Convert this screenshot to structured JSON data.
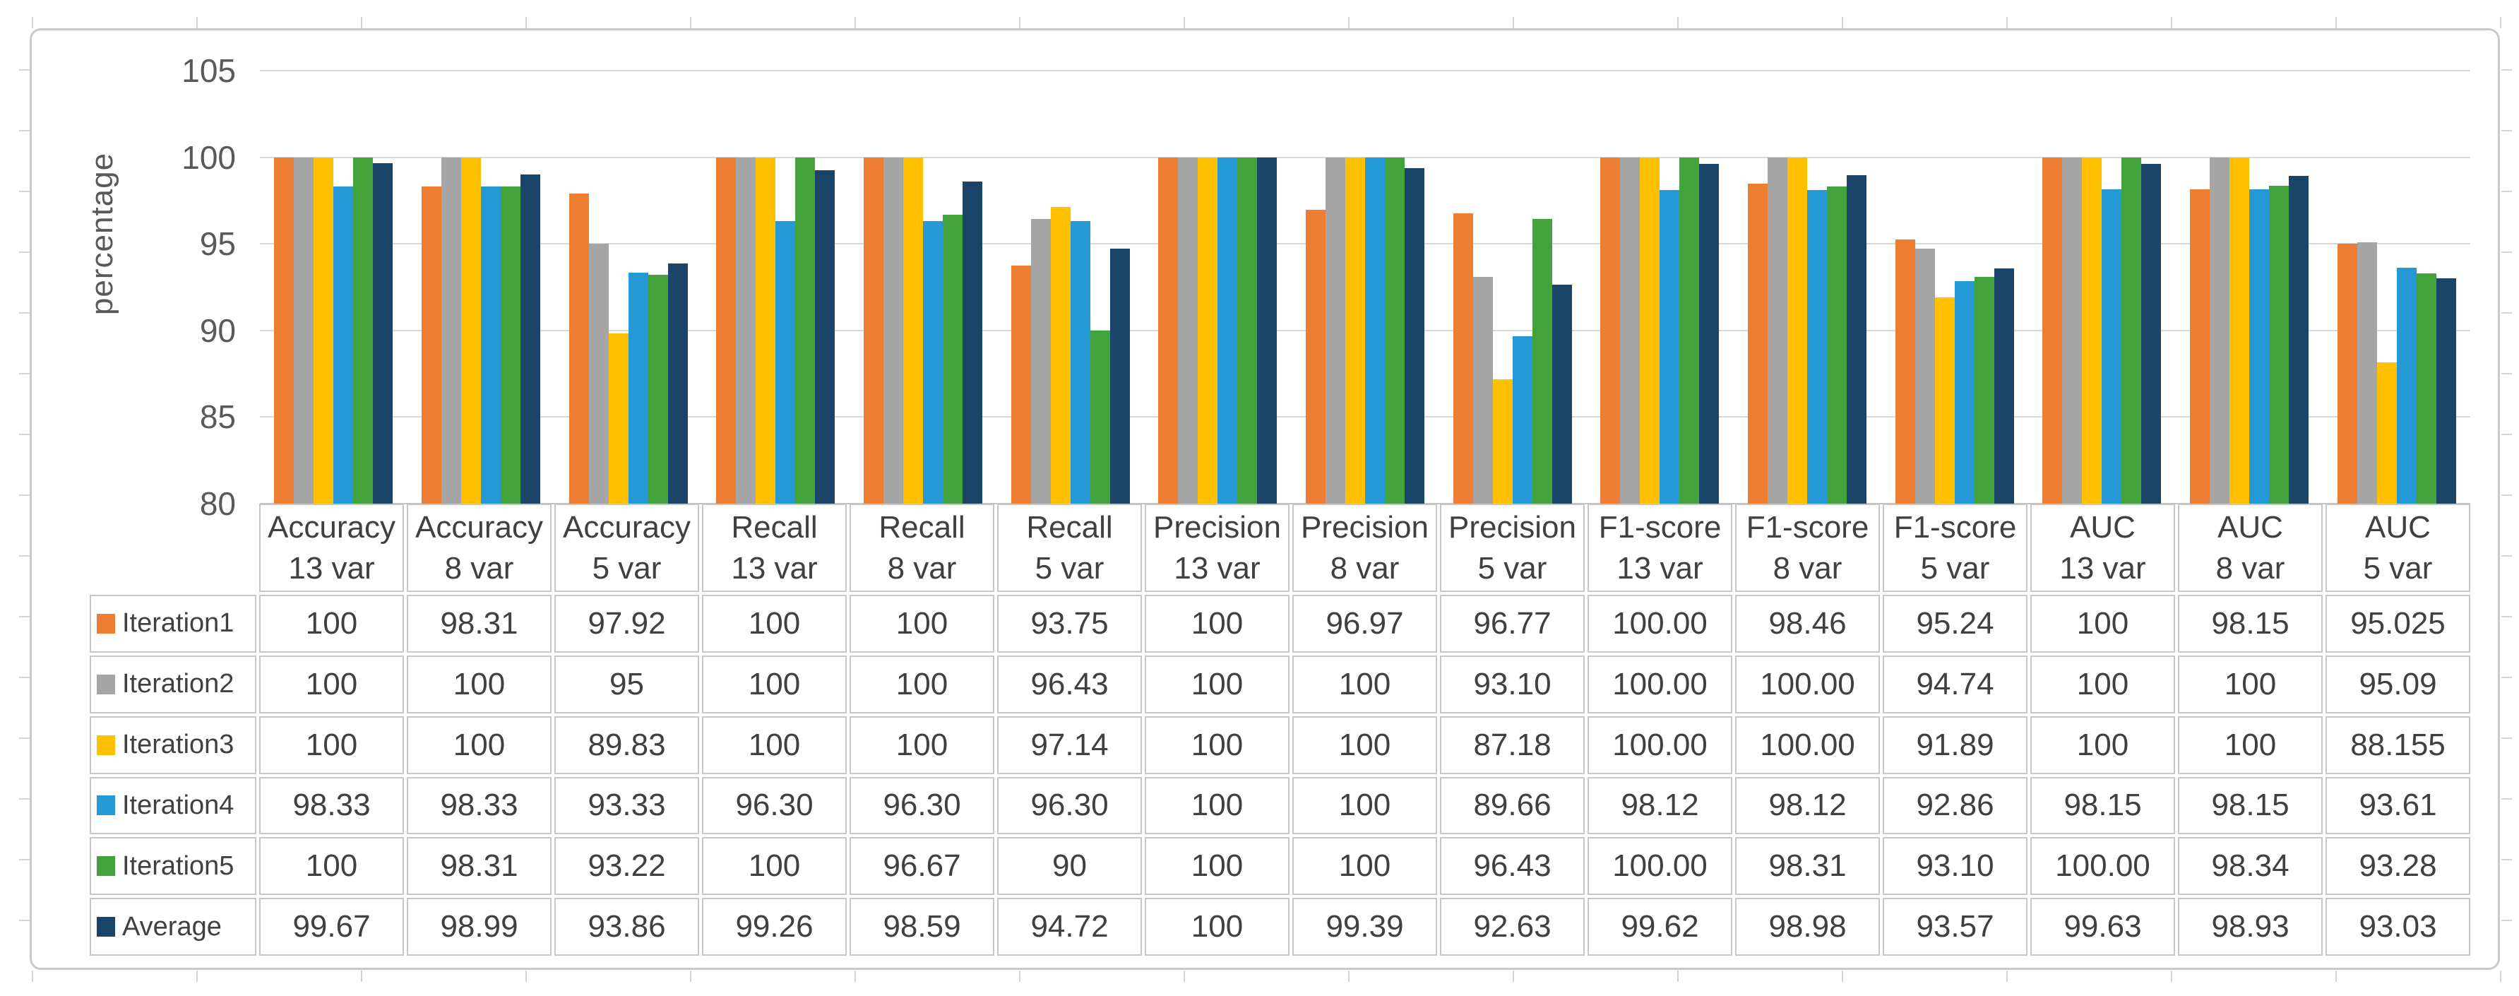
{
  "chart_data": {
    "type": "bar",
    "title": "",
    "xlabel": "",
    "ylabel": "percentage",
    "ylim": [
      80,
      105
    ],
    "yticks": [
      "80",
      "85",
      "90",
      "95",
      "100",
      "105"
    ],
    "grid": true,
    "legend_position": "data-table-left-column",
    "categories": [
      {
        "label": "Accuracy",
        "sub": "13 var"
      },
      {
        "label": "Accuracy",
        "sub": "8 var"
      },
      {
        "label": "Accuracy",
        "sub": "5 var"
      },
      {
        "label": "Recall",
        "sub": "13 var"
      },
      {
        "label": "Recall",
        "sub": "8 var"
      },
      {
        "label": "Recall",
        "sub": "5 var"
      },
      {
        "label": "Precision",
        "sub": "13 var"
      },
      {
        "label": "Precision",
        "sub": "8 var"
      },
      {
        "label": "Precision",
        "sub": "5 var"
      },
      {
        "label": "F1-score",
        "sub": "13 var"
      },
      {
        "label": "F1-score",
        "sub": "8 var"
      },
      {
        "label": "F1-score",
        "sub": "5 var"
      },
      {
        "label": "AUC",
        "sub": "13 var"
      },
      {
        "label": "AUC",
        "sub": "8 var"
      },
      {
        "label": "AUC",
        "sub": "5 var"
      }
    ],
    "series": [
      {
        "name": "Iteration1",
        "color": "#ED7D31",
        "display": [
          "100",
          "98.31",
          "97.92",
          "100",
          "100",
          "93.75",
          "100",
          "96.97",
          "96.77",
          "100.00",
          "98.46",
          "95.24",
          "100",
          "98.15",
          "95.025"
        ]
      },
      {
        "name": "Iteration2",
        "color": "#A5A5A5",
        "display": [
          "100",
          "100",
          "95",
          "100",
          "100",
          "96.43",
          "100",
          "100",
          "93.10",
          "100.00",
          "100.00",
          "94.74",
          "100",
          "100",
          "95.09"
        ]
      },
      {
        "name": "Iteration3",
        "color": "#FFC000",
        "display": [
          "100",
          "100",
          "89.83",
          "100",
          "100",
          "97.14",
          "100",
          "100",
          "87.18",
          "100.00",
          "100.00",
          "91.89",
          "100",
          "100",
          "88.155"
        ]
      },
      {
        "name": "Iteration4",
        "color": "#2499D6",
        "display": [
          "98.33",
          "98.33",
          "93.33",
          "96.30",
          "96.30",
          "96.30",
          "100",
          "100",
          "89.66",
          "98.12",
          "98.12",
          "92.86",
          "98.15",
          "98.15",
          "93.61"
        ]
      },
      {
        "name": "Iteration5",
        "color": "#42A33C",
        "display": [
          "100",
          "98.31",
          "93.22",
          "100",
          "96.67",
          "90",
          "100",
          "100",
          "96.43",
          "100.00",
          "98.31",
          "93.10",
          "100.00",
          "98.34",
          "93.28"
        ]
      },
      {
        "name": "Average",
        "color": "#1A4568",
        "display": [
          "99.67",
          "98.99",
          "93.86",
          "99.26",
          "98.59",
          "94.72",
          "100",
          "99.39",
          "92.63",
          "99.62",
          "98.98",
          "93.57",
          "99.63",
          "98.93",
          "93.03"
        ]
      }
    ]
  },
  "colors": {
    "gridline": "#D9D9D9",
    "axis_line": "#BFBFBF",
    "table_border": "#C7C7C7",
    "figure_border": "#C9C9C9",
    "axis_text": "#595959",
    "table_text": "#404040"
  }
}
